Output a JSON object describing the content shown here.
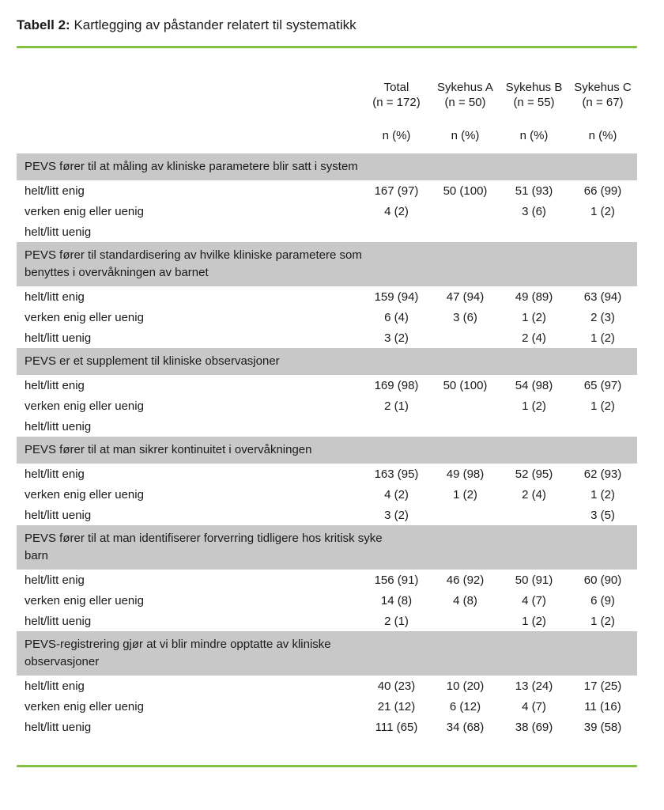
{
  "page": {
    "caption_label": "Tabell 2:",
    "caption_text": "Kartlegging av påstander relatert til systematikk"
  },
  "colors": {
    "accent_green": "#84C141",
    "band_gray": "#C8C8C9"
  },
  "table": {
    "columns": [
      {
        "name": "Total",
        "n": "(n = 172)",
        "sub": "n (%)"
      },
      {
        "name": "Sykehus A",
        "n": "(n = 50)",
        "sub": "n (%)"
      },
      {
        "name": "Sykehus B",
        "n": "(n = 55)",
        "sub": "n (%)"
      },
      {
        "name": "Sykehus C",
        "n": "(n = 67)",
        "sub": "n (%)"
      }
    ],
    "groups": [
      {
        "statement": "PEVS fører til at måling av kliniske parametere blir satt i system",
        "rows": [
          {
            "label": "helt/litt enig",
            "values": [
              "167 (97)",
              "50 (100)",
              "51 (93)",
              "66 (99)"
            ]
          },
          {
            "label": "verken enig eller uenig",
            "values": [
              "4 (2)",
              "",
              "3 (6)",
              "1 (2)"
            ]
          },
          {
            "label": "helt/litt uenig",
            "values": [
              "",
              "",
              "",
              ""
            ]
          }
        ]
      },
      {
        "statement": "PEVS fører til standardisering av hvilke kliniske parametere som benyttes i overvåkningen av barnet",
        "rows": [
          {
            "label": "helt/litt enig",
            "values": [
              "159 (94)",
              "47 (94)",
              "49 (89)",
              "63 (94)"
            ]
          },
          {
            "label": "verken enig eller uenig",
            "values": [
              "6 (4)",
              "3 (6)",
              "1 (2)",
              "2 (3)"
            ]
          },
          {
            "label": "helt/litt uenig",
            "values": [
              "3 (2)",
              "",
              "2 (4)",
              "1 (2)"
            ]
          }
        ]
      },
      {
        "statement": "PEVS er et supplement til kliniske observasjoner",
        "rows": [
          {
            "label": "helt/litt enig",
            "values": [
              "169 (98)",
              "50 (100)",
              "54 (98)",
              "65 (97)"
            ]
          },
          {
            "label": "verken enig eller uenig",
            "values": [
              "2 (1)",
              "",
              "1 (2)",
              "1 (2)"
            ]
          },
          {
            "label": "helt/litt uenig",
            "values": [
              "",
              "",
              "",
              ""
            ]
          }
        ]
      },
      {
        "statement": "PEVS fører til at man sikrer kontinuitet i overvåkningen",
        "rows": [
          {
            "label": "helt/litt enig",
            "values": [
              "163 (95)",
              "49 (98)",
              "52 (95)",
              "62 (93)"
            ]
          },
          {
            "label": "verken enig eller uenig",
            "values": [
              "4 (2)",
              "1 (2)",
              "2 (4)",
              "1 (2)"
            ]
          },
          {
            "label": "helt/litt uenig",
            "values": [
              "3 (2)",
              "",
              "",
              "3 (5)"
            ]
          }
        ]
      },
      {
        "statement": "PEVS fører til at man identifiserer forverring tidligere hos kritisk syke barn",
        "rows": [
          {
            "label": "helt/litt enig",
            "values": [
              "156 (91)",
              "46 (92)",
              "50 (91)",
              "60 (90)"
            ]
          },
          {
            "label": "verken enig eller uenig",
            "values": [
              "14 (8)",
              "4 (8)",
              "4 (7)",
              "6 (9)"
            ]
          },
          {
            "label": "helt/litt uenig",
            "values": [
              "2 (1)",
              "",
              "1 (2)",
              "1 (2)"
            ]
          }
        ]
      },
      {
        "statement": "PEVS-registrering gjør at vi blir mindre opptatte av kliniske observasjoner",
        "rows": [
          {
            "label": "helt/litt enig",
            "values": [
              "40 (23)",
              "10 (20)",
              "13 (24)",
              "17 (25)"
            ]
          },
          {
            "label": "verken enig eller uenig",
            "values": [
              "21 (12)",
              "6 (12)",
              "4 (7)",
              "11 (16)"
            ]
          },
          {
            "label": "helt/litt uenig",
            "values": [
              "111 (65)",
              "34 (68)",
              "38 (69)",
              "39 (58)"
            ]
          }
        ]
      }
    ]
  }
}
